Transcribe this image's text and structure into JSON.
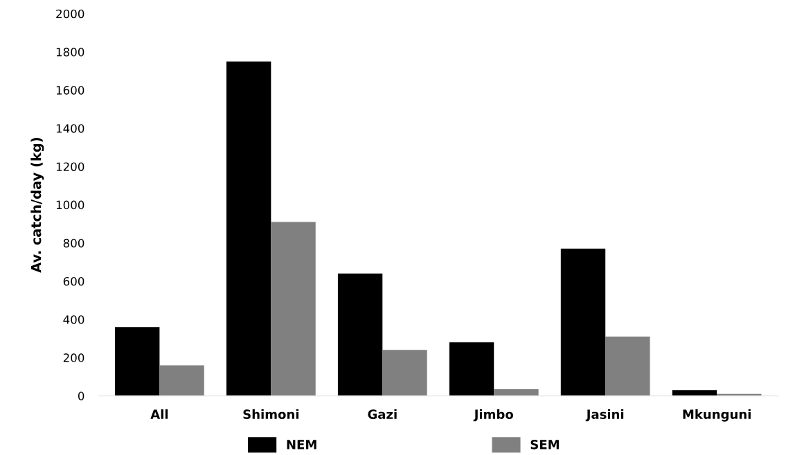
{
  "chart_data": {
    "type": "bar",
    "ylabel": "Av. catch/day (kg)",
    "categories": [
      "All",
      "Shimoni",
      "Gazi",
      "Jimbo",
      "Jasini",
      "Mkunguni"
    ],
    "series": [
      {
        "name": "NEM",
        "color": "#000000",
        "values": [
          360,
          1750,
          640,
          280,
          770,
          30
        ]
      },
      {
        "name": "SEM",
        "color": "#808080",
        "values": [
          160,
          910,
          240,
          35,
          310,
          10
        ]
      }
    ],
    "ylim": [
      0,
      2000
    ],
    "yticks": [
      0,
      200,
      400,
      600,
      800,
      1000,
      1200,
      1400,
      1600,
      1800,
      2000
    ],
    "grid": false,
    "legend": "bottom"
  }
}
